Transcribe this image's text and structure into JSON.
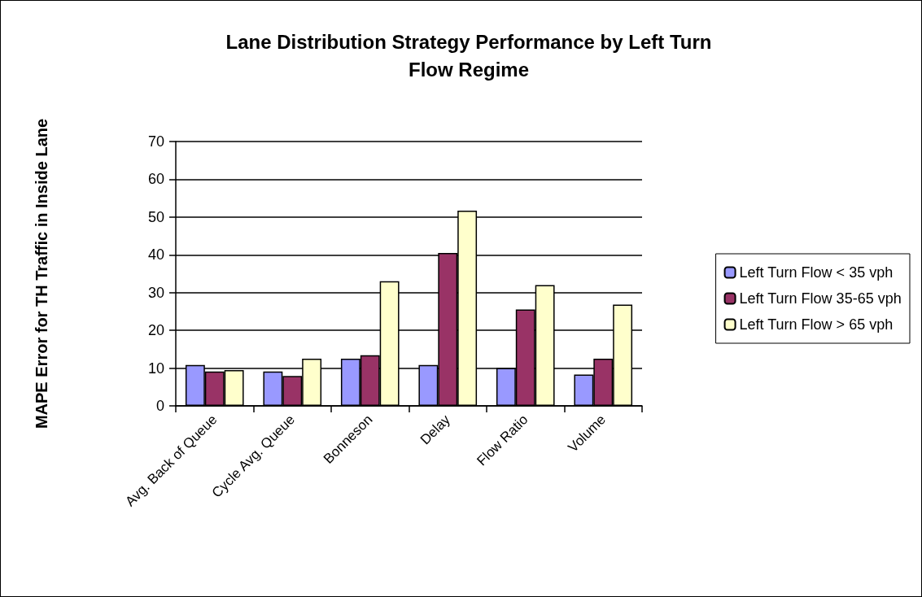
{
  "chart_data": {
    "type": "bar",
    "title": "Lane Distribution Strategy Performance by Left Turn Flow Regime",
    "ylabel": "MAPE Error for TH Traffic in Inside Lane",
    "categories": [
      "Avg. Back of Queue",
      "Cycle Avg. Queue",
      "Bonneson",
      "Delay",
      "Flow Ratio",
      "Volume"
    ],
    "series": [
      {
        "name": "Left Turn Flow < 35 vph",
        "color": "#9999ff",
        "values": [
          10.8,
          9.1,
          12.5,
          10.8,
          10,
          8.3
        ]
      },
      {
        "name": "Left Turn Flow 35-65 vph",
        "color": "#993366",
        "values": [
          9.1,
          7.9,
          13.4,
          40.5,
          25.5,
          12.5
        ]
      },
      {
        "name": "Left Turn Flow > 65 vph",
        "color": "#ffffcc",
        "values": [
          9.5,
          12.5,
          33,
          51.7,
          32,
          26.8
        ]
      }
    ],
    "ylim": [
      0,
      70
    ],
    "yticks": [
      0,
      10,
      20,
      30,
      40,
      50,
      60,
      70
    ],
    "grid": "y",
    "legend": "right"
  }
}
